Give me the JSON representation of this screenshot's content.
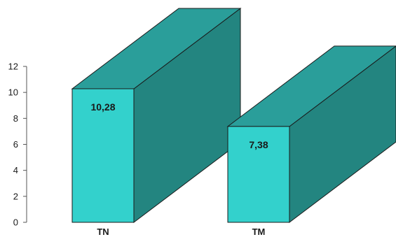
{
  "chart_data": {
    "type": "bar",
    "style": "3d",
    "title": "",
    "xlabel": "",
    "ylabel": "",
    "categories": [
      "TN",
      "TM"
    ],
    "values": [
      10.28,
      7.38
    ],
    "value_labels": [
      "10,28",
      "7,38"
    ],
    "ylim": [
      0,
      12
    ],
    "yticks": [
      0,
      2,
      4,
      6,
      8,
      10,
      12
    ],
    "grid": false,
    "legend": "none",
    "colors": {
      "front": "#33d1cc",
      "top": "#2a9e9a",
      "side": "#238580",
      "outline": "#1a1a1a"
    }
  }
}
